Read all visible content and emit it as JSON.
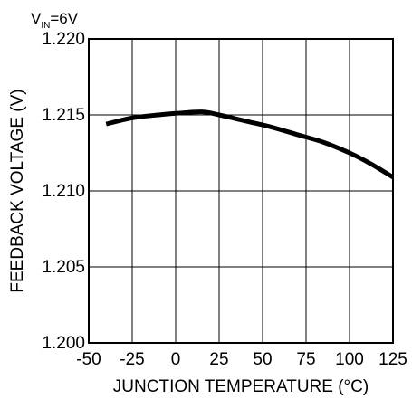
{
  "condition": {
    "prefix": "V",
    "subscript": "IN",
    "suffix": "=6V"
  },
  "chart_data": {
    "type": "line",
    "title": "",
    "xlabel": "JUNCTION TEMPERATURE (°C)",
    "ylabel": "FEEDBACK VOLTAGE (V)",
    "xlim": [
      -50,
      125
    ],
    "ylim": [
      1.2,
      1.22
    ],
    "xticks": [
      -50,
      -25,
      0,
      25,
      50,
      75,
      100,
      125
    ],
    "xtick_labels": [
      "-50",
      "-25",
      "0",
      "25",
      "50",
      "75",
      "100",
      "125"
    ],
    "yticks": [
      1.2,
      1.205,
      1.21,
      1.215,
      1.22
    ],
    "ytick_labels": [
      "1.200",
      "1.205",
      "1.210",
      "1.215",
      "1.220"
    ],
    "grid": true,
    "series": [
      {
        "x": [
          -40,
          -25,
          -10,
          0,
          15,
          25,
          40,
          55,
          70,
          85,
          100,
          112,
          125
        ],
        "y": [
          1.2144,
          1.2148,
          1.215,
          1.2151,
          1.2152,
          1.215,
          1.2146,
          1.2142,
          1.2137,
          1.2132,
          1.2125,
          1.2118,
          1.2109
        ]
      }
    ]
  }
}
